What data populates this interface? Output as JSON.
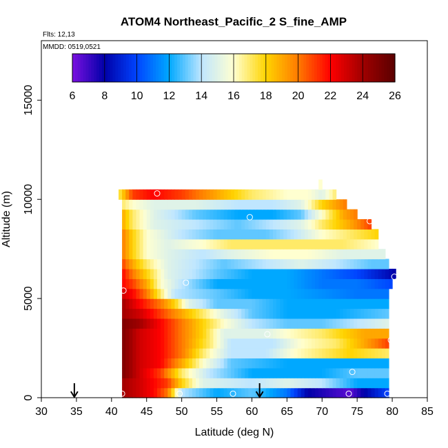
{
  "chart_data": {
    "type": "heatmap",
    "title": "ATOM4 Northeast_Pacific_2 S_fine_AMP",
    "flights_label": "Flts: 12,13",
    "dates_label": "MMDD: 0519,0521",
    "xlabel": "Latitude (deg N)",
    "ylabel": "Altitude (m)",
    "xlim": [
      30,
      85
    ],
    "ylim": [
      0,
      18000
    ],
    "x_ticks": [
      30,
      35,
      40,
      45,
      50,
      55,
      60,
      65,
      70,
      75,
      80,
      85
    ],
    "y_ticks": [
      0,
      5000,
      10000,
      15000
    ],
    "colorbar": {
      "range": [
        6,
        26
      ],
      "ticks": [
        6,
        8,
        10,
        12,
        14,
        16,
        18,
        20,
        22,
        24,
        26
      ],
      "colors": [
        "#7a10e0",
        "#0000a8",
        "#0044ff",
        "#00a8ff",
        "#bfe6ff",
        "#ffffd0",
        "#ffd400",
        "#ff7a00",
        "#ff0000",
        "#a00000",
        "#5a0000"
      ]
    },
    "grid": false,
    "cell": {
      "lat_width": 0.5,
      "alt_height": 500
    },
    "rows": [
      {
        "alt": 250,
        "lat_max": 79.5,
        "ctrl": [
          [
            41.5,
            24
          ],
          [
            44,
            23
          ],
          [
            46,
            22
          ],
          [
            48,
            20
          ],
          [
            50,
            14
          ],
          [
            55,
            12
          ],
          [
            60,
            13
          ],
          [
            65,
            11
          ],
          [
            68,
            8
          ],
          [
            72,
            7
          ],
          [
            74,
            6.5
          ],
          [
            76,
            8
          ],
          [
            79.5,
            10
          ]
        ]
      },
      {
        "alt": 750,
        "lat_max": 79.5,
        "ctrl": [
          [
            41.5,
            24
          ],
          [
            44,
            23
          ],
          [
            46,
            22
          ],
          [
            48,
            21
          ],
          [
            50,
            18
          ],
          [
            53,
            15
          ],
          [
            60,
            14
          ],
          [
            65,
            15
          ],
          [
            70,
            14
          ],
          [
            75,
            12
          ],
          [
            79.5,
            12
          ]
        ]
      },
      {
        "alt": 1250,
        "lat_max": 79.5,
        "ctrl": [
          [
            41.5,
            25
          ],
          [
            44,
            23
          ],
          [
            47,
            21
          ],
          [
            50,
            17
          ],
          [
            54,
            14
          ],
          [
            60,
            12
          ],
          [
            65,
            12
          ],
          [
            70,
            12
          ],
          [
            75,
            13
          ],
          [
            79.5,
            13
          ]
        ]
      },
      {
        "alt": 1750,
        "lat_max": 79.5,
        "ctrl": [
          [
            41.5,
            25
          ],
          [
            44,
            23
          ],
          [
            47,
            22
          ],
          [
            50,
            19
          ],
          [
            53,
            16
          ],
          [
            57,
            13
          ],
          [
            65,
            12
          ],
          [
            72,
            12
          ],
          [
            79.5,
            12
          ]
        ]
      },
      {
        "alt": 2250,
        "lat_max": 79.5,
        "ctrl": [
          [
            41.5,
            25
          ],
          [
            44,
            23
          ],
          [
            47,
            22
          ],
          [
            50,
            20
          ],
          [
            53,
            17
          ],
          [
            57,
            14
          ],
          [
            62,
            14
          ],
          [
            66,
            16
          ],
          [
            70,
            17
          ],
          [
            74,
            18
          ],
          [
            79.5,
            17
          ]
        ]
      },
      {
        "alt": 2750,
        "lat_max": 79.5,
        "ctrl": [
          [
            41.5,
            25
          ],
          [
            44,
            23
          ],
          [
            47,
            22
          ],
          [
            50,
            20
          ],
          [
            54,
            17
          ],
          [
            57,
            14
          ],
          [
            63,
            14
          ],
          [
            67,
            16
          ],
          [
            72,
            17
          ],
          [
            76,
            19
          ],
          [
            79.5,
            21
          ]
        ]
      },
      {
        "alt": 3250,
        "lat_max": 79.5,
        "ctrl": [
          [
            41.5,
            25
          ],
          [
            44,
            23
          ],
          [
            47,
            22
          ],
          [
            50,
            20
          ],
          [
            53,
            18
          ],
          [
            56,
            15
          ],
          [
            62,
            15
          ],
          [
            65,
            16
          ],
          [
            70,
            17
          ],
          [
            76,
            19
          ],
          [
            79.5,
            19
          ]
        ]
      },
      {
        "alt": 3750,
        "lat_max": 79.5,
        "ctrl": [
          [
            41.5,
            25
          ],
          [
            44,
            24
          ],
          [
            47,
            22
          ],
          [
            50,
            20
          ],
          [
            53,
            18
          ],
          [
            56,
            16
          ],
          [
            60,
            14
          ],
          [
            65,
            13
          ],
          [
            70,
            13
          ],
          [
            75,
            14
          ],
          [
            79.5,
            15
          ]
        ]
      },
      {
        "alt": 4250,
        "lat_max": 79.5,
        "ctrl": [
          [
            41.5,
            24
          ],
          [
            44,
            23
          ],
          [
            47,
            21
          ],
          [
            50,
            19
          ],
          [
            53,
            17
          ],
          [
            56,
            15
          ],
          [
            60,
            13
          ],
          [
            65,
            12
          ],
          [
            72,
            12
          ],
          [
            79.5,
            13
          ]
        ]
      },
      {
        "alt": 4750,
        "lat_max": 79.5,
        "ctrl": [
          [
            41.5,
            24
          ],
          [
            44,
            22
          ],
          [
            47,
            20
          ],
          [
            49,
            18
          ],
          [
            51,
            15
          ],
          [
            55,
            13
          ],
          [
            60,
            13
          ],
          [
            65,
            12
          ],
          [
            72,
            12
          ],
          [
            79.5,
            12
          ]
        ]
      },
      {
        "alt": 5250,
        "lat_max": 79.5,
        "ctrl": [
          [
            41.5,
            23
          ],
          [
            43,
            22
          ],
          [
            45,
            20
          ],
          [
            47,
            17
          ],
          [
            49,
            14
          ],
          [
            55,
            13
          ],
          [
            60,
            12
          ],
          [
            65,
            12
          ],
          [
            75,
            11
          ],
          [
            79.5,
            11
          ]
        ]
      },
      {
        "alt": 5750,
        "lat_max": 80,
        "ctrl": [
          [
            41.5,
            22
          ],
          [
            43,
            21
          ],
          [
            45,
            19
          ],
          [
            47,
            16
          ],
          [
            50,
            14
          ],
          [
            55,
            12
          ],
          [
            65,
            12
          ],
          [
            70,
            11
          ],
          [
            75,
            11
          ],
          [
            80,
            10
          ]
        ]
      },
      {
        "alt": 6250,
        "lat_max": 80.5,
        "ctrl": [
          [
            41.5,
            22
          ],
          [
            43,
            20
          ],
          [
            45,
            18
          ],
          [
            48,
            15
          ],
          [
            55,
            13
          ],
          [
            60,
            12
          ],
          [
            65,
            12
          ],
          [
            70,
            11
          ],
          [
            75,
            10
          ],
          [
            80.5,
            8
          ]
        ]
      },
      {
        "alt": 6750,
        "lat_max": 79.5,
        "ctrl": [
          [
            41.5,
            21
          ],
          [
            43,
            19
          ],
          [
            45,
            17
          ],
          [
            48,
            15
          ],
          [
            52,
            14
          ],
          [
            56,
            13
          ],
          [
            62,
            14
          ],
          [
            67,
            15
          ],
          [
            72,
            14
          ],
          [
            77,
            13
          ],
          [
            79.5,
            13
          ]
        ]
      },
      {
        "alt": 7250,
        "lat_max": 79,
        "ctrl": [
          [
            41.5,
            20
          ],
          [
            43,
            18
          ],
          [
            45,
            16
          ],
          [
            48,
            15
          ],
          [
            53,
            14
          ],
          [
            57,
            15
          ],
          [
            63,
            16
          ],
          [
            68,
            16
          ],
          [
            73,
            15
          ],
          [
            79,
            15
          ]
        ]
      },
      {
        "alt": 7750,
        "lat_max": 78,
        "ctrl": [
          [
            41.5,
            20
          ],
          [
            43,
            18
          ],
          [
            45,
            16
          ],
          [
            48,
            15
          ],
          [
            53,
            16
          ],
          [
            57,
            17
          ],
          [
            63,
            17
          ],
          [
            68,
            17
          ],
          [
            73,
            17
          ],
          [
            78,
            16
          ]
        ]
      },
      {
        "alt": 8250,
        "lat_max": 78,
        "ctrl": [
          [
            41.5,
            20
          ],
          [
            43,
            18
          ],
          [
            45,
            16
          ],
          [
            50,
            14
          ],
          [
            55,
            13
          ],
          [
            62,
            13
          ],
          [
            66,
            14
          ],
          [
            70,
            16
          ],
          [
            74,
            17
          ],
          [
            78,
            18
          ]
        ]
      },
      {
        "alt": 8750,
        "lat_max": 77,
        "ctrl": [
          [
            41.5,
            19
          ],
          [
            43,
            17
          ],
          [
            46,
            15
          ],
          [
            52,
            14
          ],
          [
            58,
            13
          ],
          [
            63,
            14
          ],
          [
            67,
            15
          ],
          [
            70,
            17
          ],
          [
            74,
            19
          ],
          [
            77,
            21
          ]
        ]
      },
      {
        "alt": 9250,
        "lat_max": 75,
        "ctrl": [
          [
            41.5,
            19
          ],
          [
            43,
            17
          ],
          [
            46,
            15
          ],
          [
            52,
            13
          ],
          [
            58,
            12
          ],
          [
            63,
            12
          ],
          [
            67,
            13
          ],
          [
            70,
            16
          ],
          [
            73,
            19
          ],
          [
            75,
            20
          ]
        ]
      },
      {
        "alt": 9750,
        "lat_max": 73.5,
        "ctrl": [
          [
            41.5,
            17
          ],
          [
            43,
            16
          ],
          [
            46,
            15
          ],
          [
            52,
            15
          ],
          [
            58,
            14
          ],
          [
            63,
            14
          ],
          [
            67,
            15
          ],
          [
            70,
            18
          ],
          [
            73.5,
            20
          ]
        ]
      },
      {
        "alt": 10250,
        "lat_max": 72,
        "ctrl": [
          [
            41,
            17
          ],
          [
            43,
            21
          ],
          [
            46,
            22
          ],
          [
            50,
            21
          ],
          [
            55,
            19
          ],
          [
            60,
            17
          ],
          [
            65,
            16
          ],
          [
            68,
            16
          ],
          [
            70,
            15
          ],
          [
            72,
            17
          ]
        ]
      },
      {
        "alt": 10750,
        "lat_max": 70,
        "ctrl": [
          [
            69.5,
            16
          ],
          [
            70,
            16
          ]
        ]
      }
    ],
    "sample_points": [
      [
        41.5,
        200
      ],
      [
        49.7,
        200
      ],
      [
        57.3,
        200
      ],
      [
        73.8,
        200
      ],
      [
        79.3,
        200
      ],
      [
        74.3,
        1300
      ],
      [
        79.8,
        2900
      ],
      [
        62.2,
        3200
      ],
      [
        41.7,
        5400
      ],
      [
        50.6,
        5800
      ],
      [
        80.3,
        6100
      ],
      [
        59.7,
        9100
      ],
      [
        76.8,
        8900
      ],
      [
        46.5,
        10300
      ]
    ],
    "arrows_lat": [
      34.7,
      61.1
    ]
  }
}
